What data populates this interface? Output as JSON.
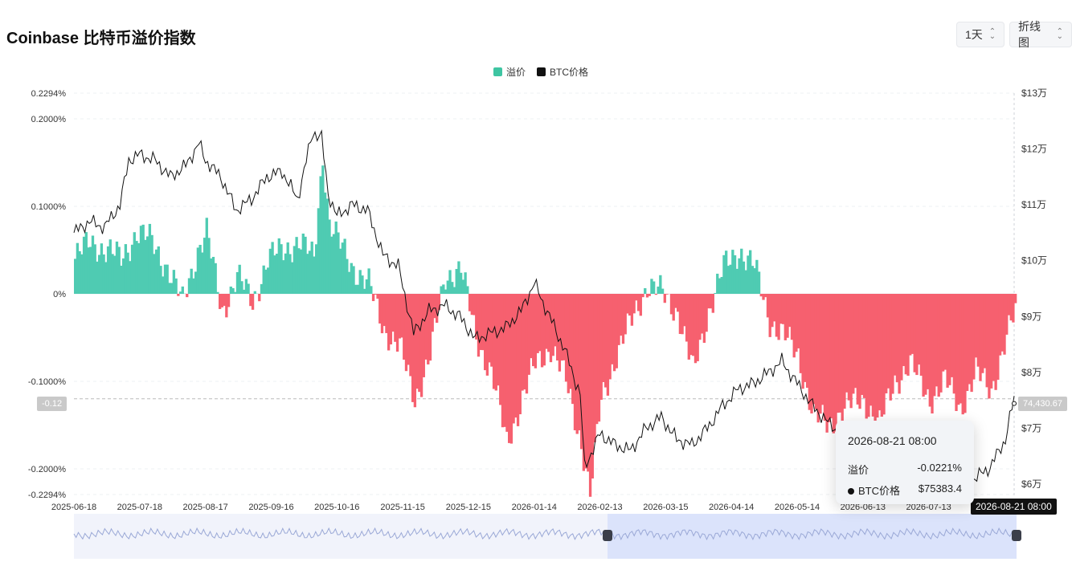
{
  "title": "Coinbase 比特币溢价指数",
  "controls": {
    "interval": "1天",
    "chart_type": "折线图"
  },
  "legend": [
    {
      "name": "溢价",
      "color": "#3ec5a2"
    },
    {
      "name": "BTC价格",
      "color": "#111111"
    }
  ],
  "colors": {
    "positive": "#4fcbb2",
    "negative": "#f6606f",
    "line": "#111111"
  },
  "chart_data": {
    "type": "bar",
    "left_axis": {
      "ticks": [
        "0.2294%",
        "0.2000%",
        "0.1000%",
        "0%",
        "-0.1000%",
        "-0.2000%",
        "-0.2294%"
      ],
      "range": [
        -0.2294,
        0.2294
      ]
    },
    "right_axis": {
      "ticks": [
        "$13万",
        "$12万",
        "$11万",
        "$10万",
        "$9万",
        "$8万",
        "$7万",
        "$6万"
      ],
      "range": [
        60000,
        130000
      ]
    },
    "x_ticks": [
      "2025-06-18",
      "2025-07-18",
      "2025-08-17",
      "2025-09-16",
      "2025-10-16",
      "2025-11-15",
      "2025-12-15",
      "2026-01-14",
      "2026-02-13",
      "2026-03-15",
      "2026-04-14",
      "2026-05-14",
      "2026-06-13",
      "2026-07-13"
    ],
    "premium_series": [
      [
        "2025-06-18",
        0.04
      ],
      [
        "2025-06-25",
        0.06
      ],
      [
        "2025-07-02",
        0.05
      ],
      [
        "2025-07-09",
        0.04
      ],
      [
        "2025-07-16",
        0.07
      ],
      [
        "2025-07-23",
        0.06
      ],
      [
        "2025-07-30",
        0.03
      ],
      [
        "2025-08-06",
        -0.01
      ],
      [
        "2025-08-13",
        0.05
      ],
      [
        "2025-08-17",
        0.07
      ],
      [
        "2025-08-24",
        -0.02
      ],
      [
        "2025-08-31",
        0.02
      ],
      [
        "2025-09-07",
        -0.01
      ],
      [
        "2025-09-14",
        0.04
      ],
      [
        "2025-09-21",
        0.05
      ],
      [
        "2025-09-28",
        0.06
      ],
      [
        "2025-10-05",
        0.04
      ],
      [
        "2025-10-09",
        0.16
      ],
      [
        "2025-10-12",
        0.08
      ],
      [
        "2025-10-16",
        0.06
      ],
      [
        "2025-10-23",
        0.03
      ],
      [
        "2025-10-30",
        0.01
      ],
      [
        "2025-11-06",
        -0.04
      ],
      [
        "2025-11-13",
        -0.06
      ],
      [
        "2025-11-20",
        -0.12
      ],
      [
        "2025-11-27",
        -0.07
      ],
      [
        "2025-12-04",
        0.02
      ],
      [
        "2025-12-11",
        0.03
      ],
      [
        "2025-12-18",
        -0.05
      ],
      [
        "2025-12-25",
        -0.09
      ],
      [
        "2026-01-01",
        -0.17
      ],
      [
        "2026-01-08",
        -0.12
      ],
      [
        "2026-01-14",
        -0.08
      ],
      [
        "2026-01-21",
        -0.06
      ],
      [
        "2026-01-28",
        -0.1
      ],
      [
        "2026-02-04",
        -0.17
      ],
      [
        "2026-02-08",
        -0.23
      ],
      [
        "2026-02-13",
        -0.12
      ],
      [
        "2026-02-20",
        -0.07
      ],
      [
        "2026-02-27",
        -0.03
      ],
      [
        "2026-03-06",
        0.01
      ],
      [
        "2026-03-13",
        0.0
      ],
      [
        "2026-03-20",
        -0.02
      ],
      [
        "2026-03-27",
        -0.09
      ],
      [
        "2026-04-03",
        -0.02
      ],
      [
        "2026-04-10",
        0.03
      ],
      [
        "2026-04-17",
        0.05
      ],
      [
        "2026-04-24",
        0.03
      ],
      [
        "2026-05-01",
        -0.03
      ],
      [
        "2026-05-08",
        -0.05
      ],
      [
        "2026-05-14",
        -0.07
      ],
      [
        "2026-05-21",
        -0.14
      ],
      [
        "2026-05-28",
        -0.15
      ],
      [
        "2026-06-04",
        -0.13
      ],
      [
        "2026-06-13",
        -0.12
      ],
      [
        "2026-06-20",
        -0.15
      ],
      [
        "2026-06-27",
        -0.1
      ],
      [
        "2026-07-04",
        -0.08
      ],
      [
        "2026-07-13",
        -0.12
      ],
      [
        "2026-07-20",
        -0.1
      ],
      [
        "2026-07-27",
        -0.13
      ],
      [
        "2026-08-03",
        -0.09
      ],
      [
        "2026-08-10",
        -0.11
      ],
      [
        "2026-08-17",
        -0.05
      ],
      [
        "2026-08-21",
        -0.0221
      ]
    ],
    "btc_price_series": [
      [
        "2025-06-18",
        105000
      ],
      [
        "2025-06-25",
        107000
      ],
      [
        "2025-07-02",
        106000
      ],
      [
        "2025-07-09",
        110000
      ],
      [
        "2025-07-13",
        118000
      ],
      [
        "2025-07-18",
        119000
      ],
      [
        "2025-07-25",
        118000
      ],
      [
        "2025-08-01",
        115000
      ],
      [
        "2025-08-08",
        117000
      ],
      [
        "2025-08-14",
        121000
      ],
      [
        "2025-08-17",
        118000
      ],
      [
        "2025-08-24",
        115000
      ],
      [
        "2025-08-31",
        109000
      ],
      [
        "2025-09-07",
        111000
      ],
      [
        "2025-09-14",
        115000
      ],
      [
        "2025-09-21",
        116000
      ],
      [
        "2025-09-28",
        111000
      ],
      [
        "2025-10-05",
        123000
      ],
      [
        "2025-10-09",
        122000
      ],
      [
        "2025-10-12",
        112000
      ],
      [
        "2025-10-16",
        108000
      ],
      [
        "2025-10-23",
        110000
      ],
      [
        "2025-10-30",
        109000
      ],
      [
        "2025-11-06",
        101000
      ],
      [
        "2025-11-13",
        99000
      ],
      [
        "2025-11-20",
        87000
      ],
      [
        "2025-11-27",
        91000
      ],
      [
        "2025-12-04",
        92000
      ],
      [
        "2025-12-11",
        90000
      ],
      [
        "2025-12-18",
        86000
      ],
      [
        "2025-12-25",
        87000
      ],
      [
        "2026-01-01",
        88000
      ],
      [
        "2026-01-08",
        91000
      ],
      [
        "2026-01-14",
        96000
      ],
      [
        "2026-01-21",
        90000
      ],
      [
        "2026-01-28",
        84000
      ],
      [
        "2026-02-04",
        76000
      ],
      [
        "2026-02-06",
        63000
      ],
      [
        "2026-02-13",
        69000
      ],
      [
        "2026-02-20",
        67000
      ],
      [
        "2026-02-27",
        66000
      ],
      [
        "2026-03-06",
        70000
      ],
      [
        "2026-03-13",
        72000
      ],
      [
        "2026-03-20",
        68000
      ],
      [
        "2026-03-27",
        67000
      ],
      [
        "2026-04-03",
        70000
      ],
      [
        "2026-04-10",
        74000
      ],
      [
        "2026-04-17",
        77000
      ],
      [
        "2026-04-24",
        78000
      ],
      [
        "2026-05-01",
        80000
      ],
      [
        "2026-05-07",
        82000
      ],
      [
        "2026-05-14",
        78000
      ],
      [
        "2026-05-21",
        74000
      ],
      [
        "2026-05-28",
        71000
      ],
      [
        "2026-06-04",
        69000
      ],
      [
        "2026-06-13",
        66000
      ],
      [
        "2026-06-20",
        64000
      ],
      [
        "2026-06-27",
        65000
      ],
      [
        "2026-07-04",
        63000
      ],
      [
        "2026-07-13",
        62000
      ],
      [
        "2026-07-20",
        64000
      ],
      [
        "2026-07-27",
        62000
      ],
      [
        "2026-08-03",
        61000
      ],
      [
        "2026-08-10",
        63000
      ],
      [
        "2026-08-17",
        68000
      ],
      [
        "2026-08-21",
        75383.4
      ]
    ],
    "crosshair": {
      "date": "2026-08-21 08:00",
      "left_value": "-0.12",
      "right_value": "74,430.67"
    },
    "tooltip": {
      "date": "2026-08-21 08:00",
      "premium_label": "溢价",
      "premium_value": "-0.0221%",
      "price_label": "BTC价格",
      "price_value": "$75383.4"
    },
    "x_start": "2025-06-18",
    "x_end": "2026-08-21"
  }
}
